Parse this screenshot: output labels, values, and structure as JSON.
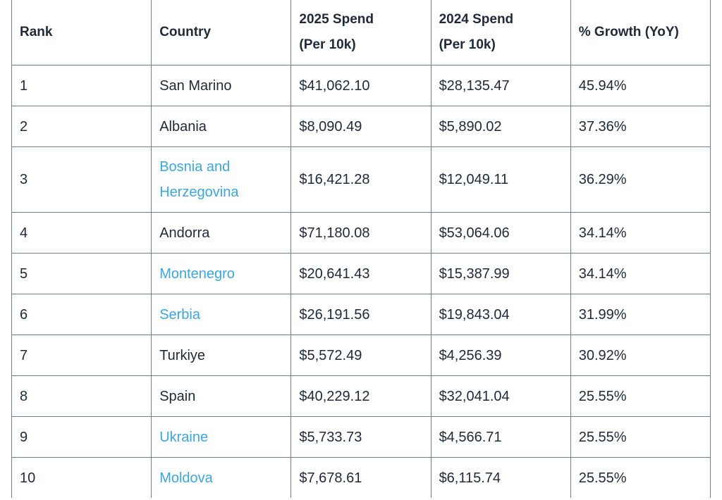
{
  "table": {
    "headers": {
      "rank": "Rank",
      "country": "Country",
      "spend_2025_line1": "2025 Spend",
      "spend_2025_line2": "(Per 10k)",
      "spend_2024_line1": "2024 Spend",
      "spend_2024_line2": "(Per 10k)",
      "growth": "% Growth (YoY)"
    },
    "rows": [
      {
        "rank": "1",
        "country": "San Marino",
        "country_linked": false,
        "spend_2025": "$41,062.10",
        "spend_2024": "$28,135.47",
        "growth": "45.94%"
      },
      {
        "rank": "2",
        "country": "Albania",
        "country_linked": false,
        "spend_2025": "$8,090.49",
        "spend_2024": "$5,890.02",
        "growth": "37.36%"
      },
      {
        "rank": "3",
        "country_line1": "Bosnia and",
        "country_line2": "Herzegovina",
        "country_linked": true,
        "spend_2025": "$16,421.28",
        "spend_2024": "$12,049.11",
        "growth": "36.29%"
      },
      {
        "rank": "4",
        "country": "Andorra",
        "country_linked": false,
        "spend_2025": "$71,180.08",
        "spend_2024": "$53,064.06",
        "growth": "34.14%"
      },
      {
        "rank": "5",
        "country": "Montenegro",
        "country_linked": true,
        "spend_2025": "$20,641.43",
        "spend_2024": "$15,387.99",
        "growth": "34.14%"
      },
      {
        "rank": "6",
        "country": "Serbia",
        "country_linked": true,
        "spend_2025": "$26,191.56",
        "spend_2024": "$19,843.04",
        "growth": "31.99%"
      },
      {
        "rank": "7",
        "country": "Turkiye",
        "country_linked": false,
        "spend_2025": "$5,572.49",
        "spend_2024": "$4,256.39",
        "growth": "30.92%"
      },
      {
        "rank": "8",
        "country": "Spain",
        "country_linked": false,
        "spend_2025": "$40,229.12",
        "spend_2024": "$32,041.04",
        "growth": "25.55%"
      },
      {
        "rank": "9",
        "country": "Ukraine",
        "country_linked": true,
        "spend_2025": "$5,733.73",
        "spend_2024": "$4,566.71",
        "growth": "25.55%"
      },
      {
        "rank": "10",
        "country": "Moldova",
        "country_linked": true,
        "spend_2025": "$7,678.61",
        "spend_2024": "$6,115.74",
        "growth": "25.55%"
      }
    ]
  },
  "colors": {
    "link": "#3ea6de",
    "text": "#1f2937",
    "border": "#6f7f91"
  }
}
